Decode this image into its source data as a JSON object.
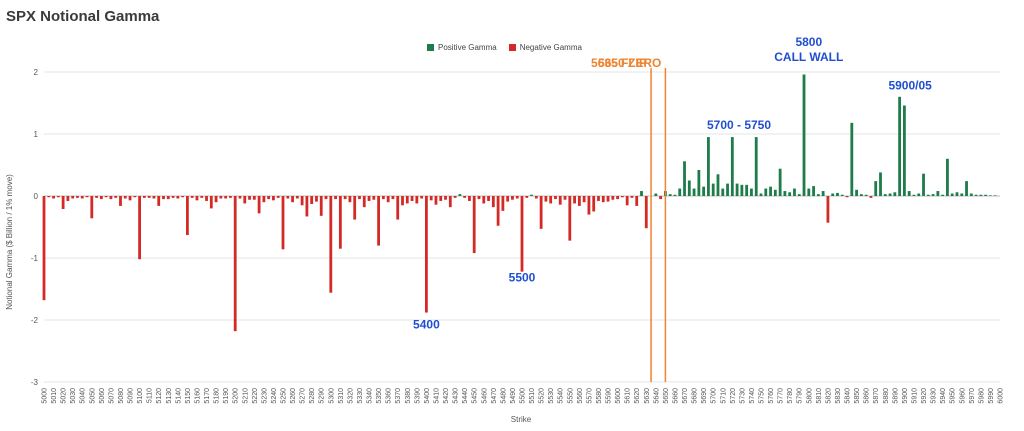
{
  "chart_data": {
    "type": "bar",
    "title": "SPX Notional Gamma",
    "xlabel": "Strike",
    "ylabel": "Notional Gamma ($ Billion / 1% move)",
    "ylim": [
      -3,
      2
    ],
    "yticks": [
      -3,
      -2,
      -1,
      0,
      1,
      2
    ],
    "grid": true,
    "legend_position": "top-center",
    "series": [
      {
        "name": "Positive Gamma",
        "color": "#1e7b4a"
      },
      {
        "name": "Negative Gamma",
        "color": "#d42a26"
      }
    ],
    "x_ticks": [
      "5000",
      "5010",
      "5020",
      "5030",
      "5040",
      "5050",
      "5060",
      "5070",
      "5080",
      "5090",
      "5100",
      "5110",
      "5120",
      "5130",
      "5140",
      "5150",
      "5160",
      "5170",
      "5180",
      "5190",
      "5200",
      "5210",
      "5220",
      "5230",
      "5240",
      "5250",
      "5260",
      "5270",
      "5280",
      "5290",
      "5300",
      "5310",
      "5320",
      "5330",
      "5340",
      "5350",
      "5360",
      "5370",
      "5380",
      "5390",
      "5400",
      "5410",
      "5420",
      "5430",
      "5440",
      "5450",
      "5460",
      "5470",
      "5480",
      "5490",
      "5500",
      "5510",
      "5520",
      "5530",
      "5540",
      "5550",
      "5560",
      "5570",
      "5580",
      "5590",
      "5600",
      "5610",
      "5620",
      "5630",
      "5640",
      "5650",
      "5660",
      "5670",
      "5680",
      "5690",
      "5700",
      "5710",
      "5720",
      "5730",
      "5740",
      "5750",
      "5760",
      "5770",
      "5780",
      "5790",
      "5800",
      "5810",
      "5820",
      "5830",
      "5840",
      "5850",
      "5860",
      "5870",
      "5880",
      "5890",
      "5900",
      "5910",
      "5920",
      "5930",
      "5940",
      "5950",
      "5960",
      "5970",
      "5980",
      "5990",
      "6000"
    ],
    "x_range": [
      5000,
      6000
    ],
    "bars": [
      [
        5000,
        -1.68
      ],
      [
        5005,
        -0.02
      ],
      [
        5010,
        -0.04
      ],
      [
        5015,
        -0.02
      ],
      [
        5020,
        -0.21
      ],
      [
        5025,
        -0.08
      ],
      [
        5030,
        -0.04
      ],
      [
        5035,
        -0.03
      ],
      [
        5040,
        -0.04
      ],
      [
        5045,
        -0.02
      ],
      [
        5050,
        -0.36
      ],
      [
        5055,
        -0.03
      ],
      [
        5060,
        -0.05
      ],
      [
        5065,
        -0.02
      ],
      [
        5070,
        -0.05
      ],
      [
        5075,
        -0.03
      ],
      [
        5080,
        -0.16
      ],
      [
        5085,
        -0.04
      ],
      [
        5090,
        -0.07
      ],
      [
        5095,
        -0.02
      ],
      [
        5100,
        -1.02
      ],
      [
        5105,
        -0.03
      ],
      [
        5110,
        -0.03
      ],
      [
        5115,
        -0.04
      ],
      [
        5120,
        -0.16
      ],
      [
        5125,
        -0.05
      ],
      [
        5130,
        -0.05
      ],
      [
        5135,
        -0.03
      ],
      [
        5140,
        -0.04
      ],
      [
        5145,
        -0.02
      ],
      [
        5150,
        -0.63
      ],
      [
        5155,
        -0.03
      ],
      [
        5160,
        -0.07
      ],
      [
        5165,
        -0.03
      ],
      [
        5170,
        -0.08
      ],
      [
        5175,
        -0.2
      ],
      [
        5180,
        -0.1
      ],
      [
        5185,
        -0.04
      ],
      [
        5190,
        -0.04
      ],
      [
        5195,
        -0.03
      ],
      [
        5200,
        -2.18
      ],
      [
        5205,
        -0.04
      ],
      [
        5210,
        -0.12
      ],
      [
        5215,
        -0.06
      ],
      [
        5220,
        -0.06
      ],
      [
        5225,
        -0.28
      ],
      [
        5230,
        -0.1
      ],
      [
        5235,
        -0.05
      ],
      [
        5240,
        -0.07
      ],
      [
        5245,
        -0.03
      ],
      [
        5250,
        -0.86
      ],
      [
        5255,
        -0.04
      ],
      [
        5260,
        -0.1
      ],
      [
        5265,
        -0.04
      ],
      [
        5270,
        -0.15
      ],
      [
        5275,
        -0.33
      ],
      [
        5280,
        -0.13
      ],
      [
        5285,
        -0.09
      ],
      [
        5290,
        -0.32
      ],
      [
        5295,
        -0.05
      ],
      [
        5300,
        -1.56
      ],
      [
        5305,
        -0.05
      ],
      [
        5310,
        -0.85
      ],
      [
        5315,
        -0.05
      ],
      [
        5320,
        -0.1
      ],
      [
        5325,
        -0.38
      ],
      [
        5330,
        -0.05
      ],
      [
        5335,
        -0.18
      ],
      [
        5340,
        -0.08
      ],
      [
        5345,
        -0.06
      ],
      [
        5350,
        -0.8
      ],
      [
        5355,
        -0.05
      ],
      [
        5360,
        -0.1
      ],
      [
        5365,
        -0.05
      ],
      [
        5370,
        -0.38
      ],
      [
        5375,
        -0.15
      ],
      [
        5380,
        -0.12
      ],
      [
        5385,
        -0.08
      ],
      [
        5390,
        -0.12
      ],
      [
        5395,
        -0.04
      ],
      [
        5400,
        -1.88
      ],
      [
        5405,
        -0.07
      ],
      [
        5410,
        -0.14
      ],
      [
        5415,
        -0.08
      ],
      [
        5420,
        -0.06
      ],
      [
        5425,
        -0.18
      ],
      [
        5430,
        -0.03
      ],
      [
        5435,
        0.03
      ],
      [
        5440,
        -0.03
      ],
      [
        5445,
        -0.08
      ],
      [
        5450,
        -0.92
      ],
      [
        5455,
        -0.05
      ],
      [
        5460,
        -0.12
      ],
      [
        5465,
        -0.08
      ],
      [
        5470,
        -0.18
      ],
      [
        5475,
        -0.48
      ],
      [
        5480,
        -0.24
      ],
      [
        5485,
        -0.09
      ],
      [
        5490,
        -0.06
      ],
      [
        5495,
        -0.04
      ],
      [
        5500,
        -1.22
      ],
      [
        5505,
        -0.03
      ],
      [
        5510,
        0.02
      ],
      [
        5515,
        -0.04
      ],
      [
        5520,
        -0.53
      ],
      [
        5525,
        -0.09
      ],
      [
        5530,
        -0.12
      ],
      [
        5535,
        -0.05
      ],
      [
        5540,
        -0.14
      ],
      [
        5545,
        -0.06
      ],
      [
        5550,
        -0.72
      ],
      [
        5555,
        -0.12
      ],
      [
        5560,
        -0.16
      ],
      [
        5565,
        -0.1
      ],
      [
        5570,
        -0.3
      ],
      [
        5575,
        -0.25
      ],
      [
        5580,
        -0.08
      ],
      [
        5585,
        -0.1
      ],
      [
        5590,
        -0.09
      ],
      [
        5595,
        -0.06
      ],
      [
        5600,
        -0.05
      ],
      [
        5605,
        -0.02
      ],
      [
        5610,
        -0.15
      ],
      [
        5615,
        -0.03
      ],
      [
        5620,
        -0.16
      ],
      [
        5625,
        0.08
      ],
      [
        5630,
        -0.52
      ],
      [
        5635,
        0.0
      ],
      [
        5640,
        0.04
      ],
      [
        5645,
        -0.05
      ],
      [
        5650,
        0.08
      ],
      [
        5655,
        0.03
      ],
      [
        5660,
        0.02
      ],
      [
        5665,
        0.12
      ],
      [
        5670,
        0.56
      ],
      [
        5675,
        0.25
      ],
      [
        5680,
        0.12
      ],
      [
        5685,
        0.42
      ],
      [
        5690,
        0.15
      ],
      [
        5695,
        0.95
      ],
      [
        5700,
        0.2
      ],
      [
        5705,
        0.35
      ],
      [
        5710,
        0.12
      ],
      [
        5715,
        0.2
      ],
      [
        5720,
        0.95
      ],
      [
        5725,
        0.2
      ],
      [
        5730,
        0.18
      ],
      [
        5735,
        0.18
      ],
      [
        5740,
        0.12
      ],
      [
        5745,
        0.95
      ],
      [
        5750,
        0.04
      ],
      [
        5755,
        0.12
      ],
      [
        5760,
        0.15
      ],
      [
        5765,
        0.1
      ],
      [
        5770,
        0.44
      ],
      [
        5775,
        0.08
      ],
      [
        5780,
        0.06
      ],
      [
        5785,
        0.12
      ],
      [
        5790,
        0.03
      ],
      [
        5795,
        1.96
      ],
      [
        5800,
        0.12
      ],
      [
        5805,
        0.16
      ],
      [
        5810,
        0.03
      ],
      [
        5815,
        0.08
      ],
      [
        5820,
        -0.43
      ],
      [
        5825,
        0.04
      ],
      [
        5830,
        0.05
      ],
      [
        5835,
        0.02
      ],
      [
        5840,
        -0.02
      ],
      [
        5845,
        1.18
      ],
      [
        5850,
        0.1
      ],
      [
        5855,
        0.03
      ],
      [
        5860,
        0.02
      ],
      [
        5865,
        -0.03
      ],
      [
        5870,
        0.24
      ],
      [
        5875,
        0.38
      ],
      [
        5880,
        0.03
      ],
      [
        5885,
        0.04
      ],
      [
        5890,
        0.06
      ],
      [
        5895,
        1.6
      ],
      [
        5900,
        1.46
      ],
      [
        5905,
        0.08
      ],
      [
        5910,
        0.02
      ],
      [
        5915,
        0.04
      ],
      [
        5920,
        0.36
      ],
      [
        5925,
        0.02
      ],
      [
        5930,
        0.03
      ],
      [
        5935,
        0.08
      ],
      [
        5940,
        0.02
      ],
      [
        5945,
        0.6
      ],
      [
        5950,
        0.04
      ],
      [
        5955,
        0.06
      ],
      [
        5960,
        0.04
      ],
      [
        5965,
        0.24
      ],
      [
        5970,
        0.04
      ],
      [
        5975,
        0.02
      ],
      [
        5980,
        0.02
      ],
      [
        5985,
        0.02
      ],
      [
        5990,
        0.01
      ],
      [
        5995,
        0.01
      ]
    ],
    "vlines": [
      {
        "x": 5635,
        "label": "5635 FLIP",
        "color": "#f0832e"
      },
      {
        "x": 5650,
        "label": "5650 ZERO",
        "color": "#f0832e"
      }
    ],
    "annotations": [
      {
        "x": 5800,
        "y": 2.42,
        "text": "5800",
        "color": "#1f4fd0"
      },
      {
        "x": 5800,
        "y": 2.18,
        "text": "CALL WALL",
        "color": "#1f4fd0"
      },
      {
        "x": 5727,
        "y": 1.08,
        "text": "5700 - 5750",
        "color": "#1f4fd0"
      },
      {
        "x": 5906,
        "y": 1.72,
        "text": "5900/05",
        "color": "#1f4fd0"
      },
      {
        "x": 5400,
        "y": -2.14,
        "text": "5400",
        "color": "#1f4fd0"
      },
      {
        "x": 5500,
        "y": -1.38,
        "text": "5500",
        "color": "#1f4fd0"
      }
    ]
  }
}
